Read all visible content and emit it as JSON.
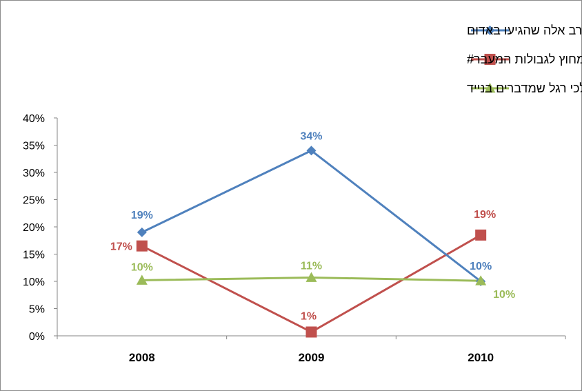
{
  "chart_data": {
    "type": "line",
    "categories": [
      "2008",
      "2009",
      "2010"
    ],
    "ylim": [
      0,
      40
    ],
    "y_ticks": [
      "0%",
      "5%",
      "10%",
      "15%",
      "20%",
      "25%",
      "30%",
      "35%",
      "40%"
    ],
    "grid": false,
    "legend_position": "top-right",
    "series": [
      {
        "name": "הולכי רגל שחצו באדום מקרב אלה שהגיעו באדום",
        "values": [
          19,
          34,
          10
        ],
        "labels": [
          "19%",
          "34%",
          "10%"
        ],
        "color": "#4f81bd",
        "marker": "diamond"
      },
      {
        "name": "הולכי רגל שחצו מחוץ לגבולות המעבר#",
        "values": [
          16.5,
          0.7,
          18.5
        ],
        "labels": [
          "17%",
          "1%",
          "19%"
        ],
        "color": "#c0504d",
        "marker": "square"
      },
      {
        "name": "הולכי רגל שמדברים בנייד",
        "values": [
          10.2,
          10.7,
          10.1
        ],
        "labels": [
          "10%",
          "11%",
          "10%"
        ],
        "color": "#9bbb59",
        "marker": "triangle"
      }
    ]
  }
}
